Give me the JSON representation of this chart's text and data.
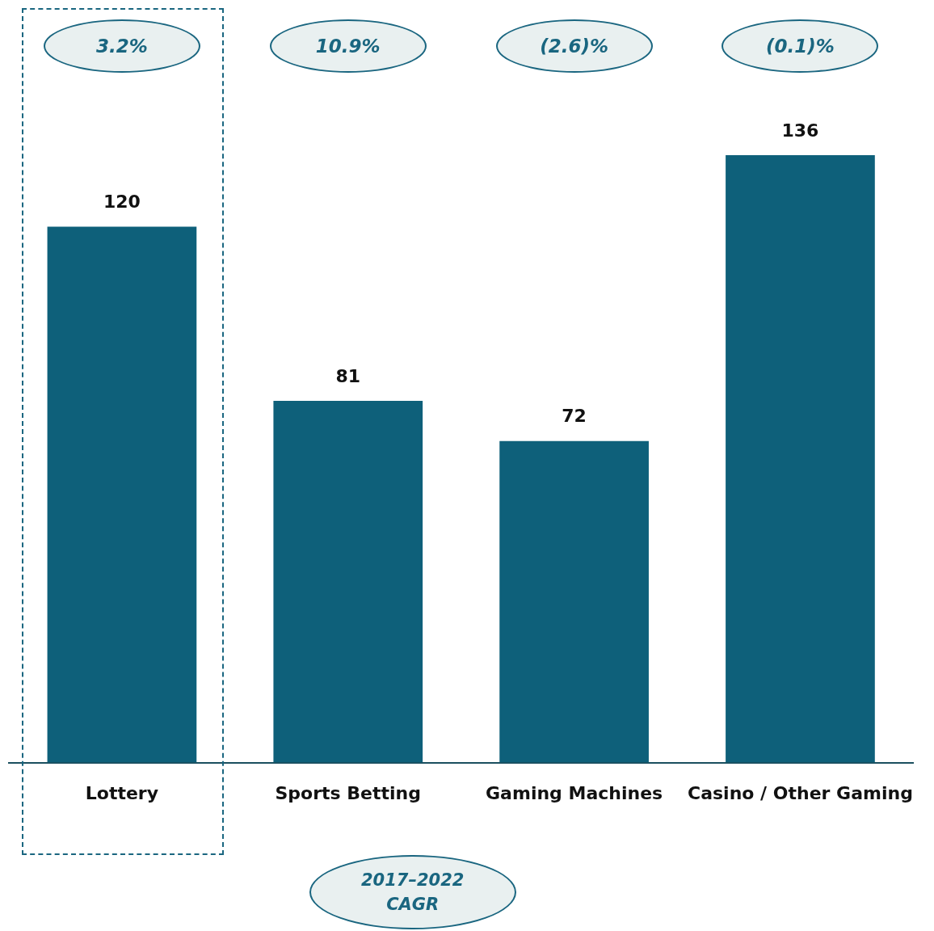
{
  "chart_data": {
    "type": "bar",
    "categories": [
      "Lottery",
      "Sports Betting",
      "Gaming Machines",
      "Casino / Other Gaming"
    ],
    "values": [
      120,
      81,
      72,
      136
    ],
    "color": "#0e607a",
    "data_labels": true,
    "grid": false,
    "legend": false,
    "tick_labels": "x",
    "annotations": [
      "3.2%",
      "10.9%",
      "(2.6)%",
      "(0.1)%",
      "2017–2022 CAGR"
    ]
  }
}
